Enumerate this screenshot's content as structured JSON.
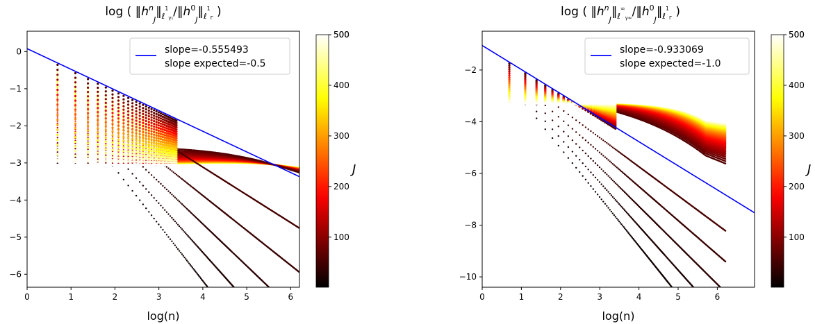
{
  "chart_data": [
    {
      "type": "scatter",
      "title": "log(‖h_J^n‖_{ℓ¹_{γ₁}} / ‖h_J^0‖_{ℓ¹_Γ})",
      "title_parts": {
        "lead": "log (",
        "h": "h",
        "sub_J": "J",
        "sup_n": "n",
        "sup_0": "0",
        "norm1_sub": "ℓ",
        "norm1_sup": "1",
        "norm1_subsub": "γ₁",
        "slash": "/",
        "norm2_sub": "ℓ",
        "norm2_sup": "1",
        "norm2_subsub": "Γ",
        "tail": ")"
      },
      "xlabel": "log(n)",
      "xlim": [
        0,
        6.2
      ],
      "ylim": [
        -6.35,
        0.55
      ],
      "xticks": [
        "0",
        "1",
        "2",
        "3",
        "4",
        "5",
        "6"
      ],
      "yticks": [
        "0",
        "−1",
        "−2",
        "−3",
        "−4",
        "−5",
        "−6"
      ],
      "fit_line": {
        "x": [
          0,
          6.2
        ],
        "y": [
          0.08,
          -3.37
        ],
        "color": "#0000ff"
      },
      "legend": {
        "entries": [
          "slope=-0.555493",
          " slope expected=-0.5"
        ],
        "placement": "top-right"
      },
      "asymptote": -3.12,
      "floor": -3.05,
      "colorbar": {
        "label": "J",
        "ticks": [
          "100",
          "200",
          "300",
          "400",
          "500"
        ],
        "range": [
          1,
          500
        ],
        "colormap": "hot"
      }
    },
    {
      "type": "scatter",
      "title": "log(‖h_J^n‖_{ℓ^∞_{γ∞}} / ‖h_J^0‖_{ℓ¹_Γ})",
      "title_parts": {
        "lead": "log (",
        "h": "h",
        "sub_J": "J",
        "sup_n": "n",
        "sup_0": "0",
        "norm1_sub": "ℓ",
        "norm1_sup": "∞",
        "norm1_subsub": "γ∞",
        "slash": "/",
        "norm2_sub": "ℓ",
        "norm2_sup": "1",
        "norm2_subsub": "Γ",
        "tail": ")"
      },
      "xlabel": "log(n)",
      "xlim": [
        0,
        6.95
      ],
      "ylim": [
        -10.4,
        -0.5
      ],
      "xticks": [
        "0",
        "1",
        "2",
        "3",
        "4",
        "5",
        "6"
      ],
      "yticks": [
        "−2",
        "−4",
        "−6",
        "−8",
        "−10"
      ],
      "fit_line": {
        "x": [
          0,
          6.95
        ],
        "y": [
          -1.05,
          -7.52
        ],
        "color": "#0000ff"
      },
      "legend": {
        "entries": [
          "slope=-0.933069",
          " slope expected=-1.0"
        ],
        "placement": "top-right"
      },
      "asymptote": -7.45,
      "floor": -3.3,
      "colorbar": {
        "label": "J",
        "ticks": [
          "100",
          "200",
          "300",
          "400",
          "500"
        ],
        "range": [
          1,
          500
        ],
        "colormap": "hot"
      }
    }
  ]
}
